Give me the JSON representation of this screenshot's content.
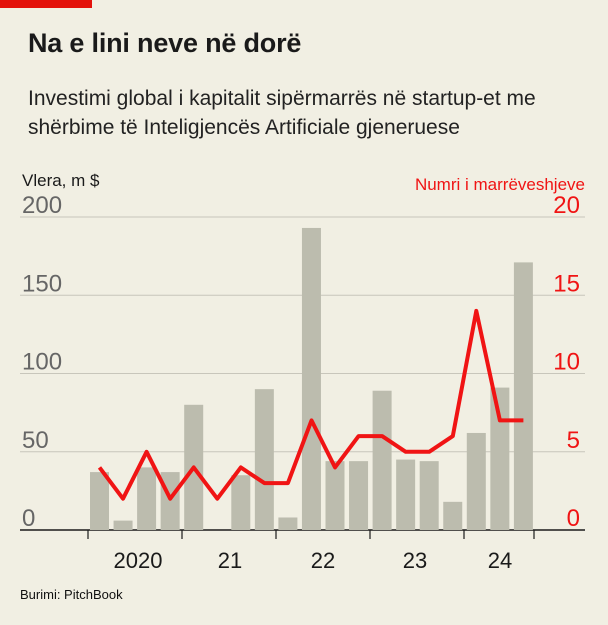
{
  "title": "Na e lini neve në dorë",
  "subtitle": "Investimi global i kapitalit sipërmarrës në startup-et me shërbime të Inteligjencës Artificiale gjeneruese",
  "source": "Burimi: PitchBook",
  "colors": {
    "bars": "#bcbcae",
    "line": "#f01414",
    "grid": "#c8c6bb",
    "bg": "#f1efe3",
    "brand": "#e3120b"
  },
  "chart_data": {
    "type": "bar",
    "left_axis": {
      "label": "Vlera, m $",
      "ticks": [
        0,
        50,
        100,
        150,
        200
      ],
      "ylim": [
        0,
        200
      ]
    },
    "right_axis": {
      "label": "Numri i marrëveshjeve",
      "ticks": [
        0,
        5,
        10,
        15,
        20
      ],
      "ylim": [
        0,
        20
      ]
    },
    "x_labels": [
      "2020",
      "21",
      "22",
      "23",
      "24"
    ],
    "quarters": [
      "2020Q1",
      "2020Q2",
      "2020Q3",
      "2020Q4",
      "2021Q1",
      "2021Q2",
      "2021Q3",
      "2021Q4",
      "2022Q1",
      "2022Q2",
      "2022Q3",
      "2022Q4",
      "2023Q1",
      "2023Q2",
      "2023Q3",
      "2023Q4",
      "2024Q1",
      "2024Q2",
      "2024Q3"
    ],
    "series": [
      {
        "name": "Vlera, m $",
        "type": "bar",
        "axis": "left",
        "values": [
          37,
          6,
          40,
          37,
          80,
          0,
          35,
          90,
          8,
          193,
          44,
          44,
          89,
          45,
          44,
          18,
          62,
          91,
          171
        ]
      },
      {
        "name": "Numri i marrëveshjeve",
        "type": "line",
        "axis": "right",
        "values": [
          4,
          2,
          5,
          2,
          4,
          2,
          4,
          3,
          3,
          7,
          4,
          6,
          6,
          5,
          5,
          6,
          14,
          7,
          7
        ]
      }
    ]
  }
}
